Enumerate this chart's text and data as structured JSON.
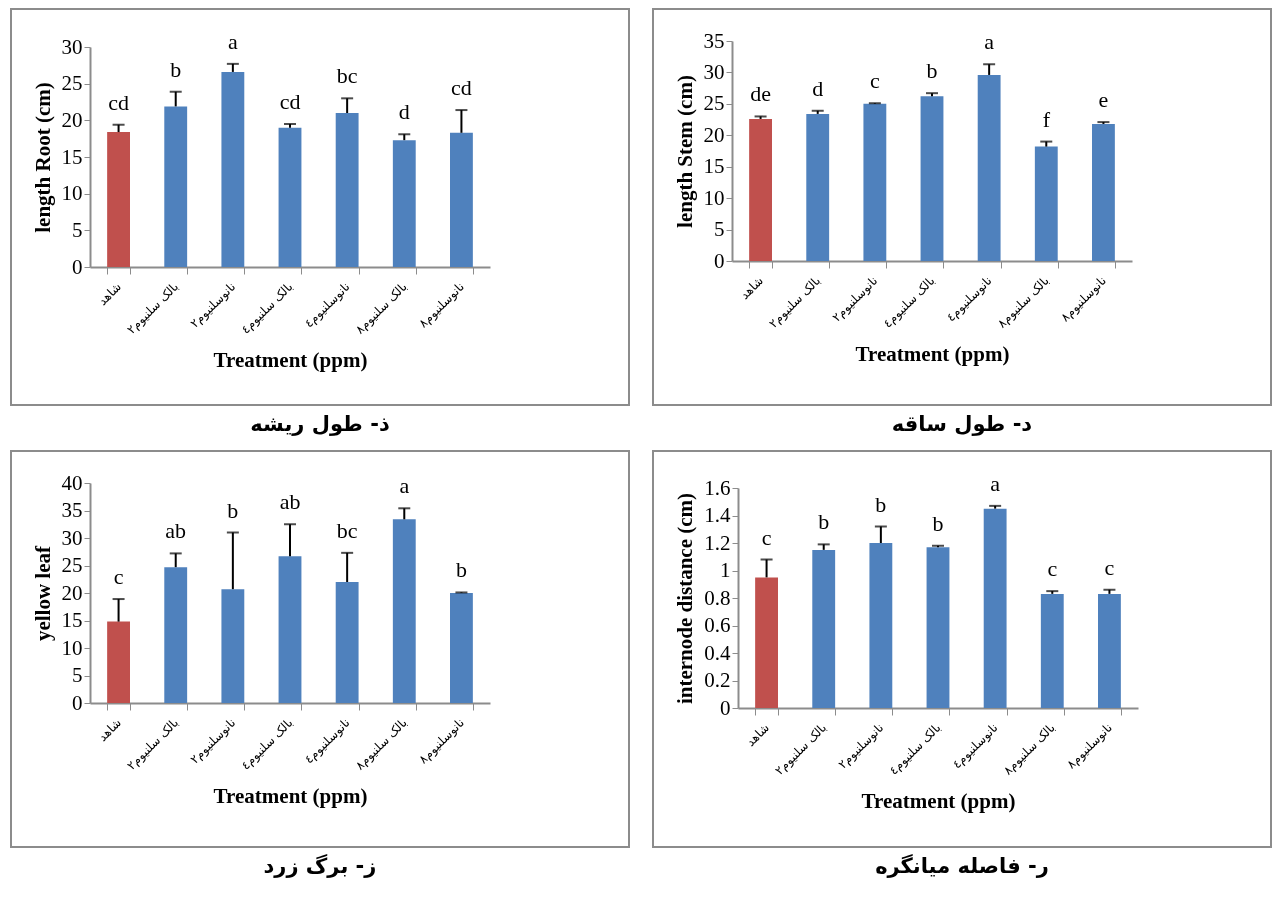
{
  "chart_data": [
    {
      "type": "bar",
      "title": "ذ- طول ریشه",
      "xlabel": "Treatment (ppm)",
      "ylabel": "length Root (cm)",
      "categories": [
        "شاهد",
        "بالک سلنیوم٢",
        "نانوسلنیوم٢",
        "بالک سلنیوم٤",
        "نانوسلنیوم٤",
        "بالک سلنیوم٨",
        "نانوسلنیوم٨"
      ],
      "values": [
        18.4,
        21.9,
        26.6,
        19.0,
        21.0,
        17.3,
        18.3
      ],
      "colors": [
        "#c0504d",
        "#4f81bd",
        "#4f81bd",
        "#4f81bd",
        "#4f81bd",
        "#4f81bd",
        "#4f81bd"
      ],
      "errors": [
        [
          18.4,
          19.4
        ],
        [
          21.9,
          23.9
        ],
        [
          26.6,
          27.7
        ],
        [
          19.0,
          19.5
        ],
        [
          21.0,
          23.0
        ],
        [
          17.3,
          18.1
        ],
        [
          18.3,
          21.4
        ]
      ],
      "ylim": [
        0,
        30
      ],
      "yticks": [
        0,
        5,
        10,
        15,
        20,
        25,
        30
      ],
      "annotations": [
        "cd",
        "b",
        "a",
        "cd",
        "bc",
        "d",
        "cd"
      ]
    },
    {
      "type": "bar",
      "title": "د- طول ساقه",
      "xlabel": "Treatment (ppm)",
      "ylabel": "length Stem (cm)",
      "categories": [
        "شاهد",
        "بالک سلنیوم٢",
        "نانوسلنیوم٢",
        "بالک سلنیوم٤",
        "نانوسلنیوم٤",
        "بالک سلنیوم٨",
        "نانوسلنیوم٨"
      ],
      "values": [
        22.6,
        23.4,
        25.0,
        26.2,
        29.6,
        18.2,
        21.8
      ],
      "colors": [
        "#c0504d",
        "#4f81bd",
        "#4f81bd",
        "#4f81bd",
        "#4f81bd",
        "#4f81bd",
        "#4f81bd"
      ],
      "errors": [
        [
          22.6,
          23.0
        ],
        [
          23.4,
          23.9
        ],
        [
          25.0,
          25.1
        ],
        [
          26.2,
          26.7
        ],
        [
          29.6,
          31.3
        ],
        [
          18.2,
          19.0
        ],
        [
          21.8,
          22.1
        ]
      ],
      "ylim": [
        0,
        35
      ],
      "yticks": [
        0,
        5,
        10,
        15,
        20,
        25,
        30,
        35
      ],
      "annotations": [
        "de",
        "d",
        "c",
        "b",
        "a",
        "f",
        "e"
      ]
    },
    {
      "type": "bar",
      "title": "ز- برگ زرد",
      "xlabel": "Treatment (ppm)",
      "ylabel": "yellow leaf",
      "categories": [
        "شاهد",
        "بالک سلنیوم٢",
        "نانوسلنیوم٢",
        "بالک سلنیوم٤",
        "نانوسلنیوم٤",
        "بالک سلنیوم٨",
        "نانوسلنیوم٨"
      ],
      "values": [
        14.8,
        24.7,
        20.7,
        26.7,
        22.0,
        33.4,
        20.0
      ],
      "colors": [
        "#c0504d",
        "#4f81bd",
        "#4f81bd",
        "#4f81bd",
        "#4f81bd",
        "#4f81bd",
        "#4f81bd"
      ],
      "errors": [
        [
          14.8,
          18.9
        ],
        [
          24.7,
          27.2
        ],
        [
          20.7,
          31.0
        ],
        [
          26.7,
          32.5
        ],
        [
          22.0,
          27.3
        ],
        [
          33.4,
          35.4
        ],
        [
          20.0,
          20.1
        ]
      ],
      "ylim": [
        0,
        40
      ],
      "yticks": [
        0,
        5,
        10,
        15,
        20,
        25,
        30,
        35,
        40
      ],
      "annotations": [
        "c",
        "ab",
        "b",
        "ab",
        "bc",
        "a",
        "b"
      ]
    },
    {
      "type": "bar",
      "title": "ر- فاصله میانگره",
      "xlabel": "Treatment (ppm)",
      "ylabel": "internode distance (cm)",
      "categories": [
        "شاهد",
        "بالک سلنیوم٢",
        "نانوسلنیوم٢",
        "بالک سلنیوم٤",
        "نانوسلنیوم٤",
        "بالک سلنیوم٨",
        "نانوسلنیوم٨"
      ],
      "values": [
        0.95,
        1.15,
        1.2,
        1.17,
        1.45,
        0.83,
        0.83
      ],
      "colors": [
        "#c0504d",
        "#4f81bd",
        "#4f81bd",
        "#4f81bd",
        "#4f81bd",
        "#4f81bd",
        "#4f81bd"
      ],
      "errors": [
        [
          0.95,
          1.08
        ],
        [
          1.15,
          1.19
        ],
        [
          1.2,
          1.32
        ],
        [
          1.17,
          1.18
        ],
        [
          1.45,
          1.47
        ],
        [
          0.83,
          0.85
        ],
        [
          0.83,
          0.86
        ]
      ],
      "ylim": [
        0,
        1.6
      ],
      "yticks": [
        0,
        0.2,
        0.4,
        0.6,
        0.8,
        1,
        1.2,
        1.4,
        1.6
      ],
      "annotations": [
        "c",
        "b",
        "b",
        "b",
        "a",
        "c",
        "c"
      ]
    }
  ]
}
